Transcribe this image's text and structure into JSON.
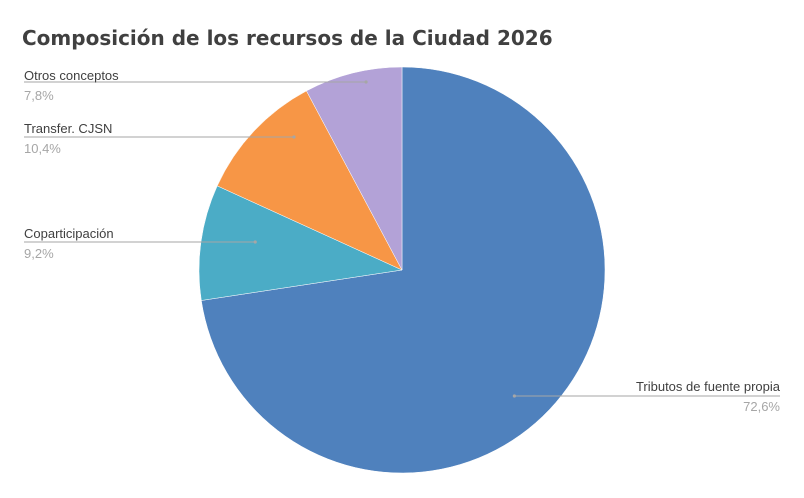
{
  "chart_data": {
    "type": "pie",
    "title": "Composición de los recursos de la Ciudad 2026",
    "categories": [
      "Tributos de fuente propia",
      "Coparticipación",
      "Transfer. CJSN",
      "Otros conceptos"
    ],
    "values": [
      72.6,
      9.2,
      10.4,
      7.8
    ],
    "value_labels": [
      "72,6%",
      "9,2%",
      "10,4%",
      "7,8%"
    ],
    "colors": [
      "#4f81bd",
      "#4bacc6",
      "#f79646",
      "#b3a2d7"
    ],
    "start_angle": "12 o'clock",
    "direction": "clockwise",
    "legend": "none (data labels with leader lines)"
  }
}
